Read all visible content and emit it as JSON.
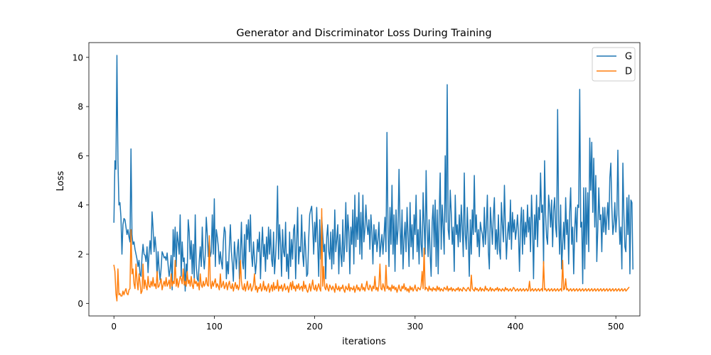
{
  "chart_data": {
    "type": "line",
    "title": "Generator and Discriminator Loss During Training",
    "xlabel": "iterations",
    "ylabel": "Loss",
    "xlim": [
      -24.95,
      523.95
    ],
    "ylim": [
      -0.51,
      10.6
    ],
    "grid": false,
    "legend_position": "top-right",
    "x_ticks": [
      0,
      100,
      200,
      300,
      400,
      500
    ],
    "y_ticks": [
      0,
      2,
      4,
      6,
      8,
      10
    ],
    "x_tick_labels": [
      "0",
      "100",
      "200",
      "300",
      "400",
      "500"
    ],
    "y_tick_labels": [
      "0",
      "2",
      "4",
      "6",
      "8",
      "10"
    ],
    "series": [
      {
        "name": "G",
        "color": "#1f77b4",
        "x_start": 0,
        "x_step": 1,
        "values": [
          3.3,
          5.8,
          5.45,
          10.08,
          5.8,
          4.0,
          4.1,
          3.5,
          2.0,
          3.2,
          3.45,
          3.4,
          3.1,
          2.8,
          3.0,
          2.7,
          2.5,
          6.28,
          2.8,
          2.4,
          2.5,
          2.2,
          2.0,
          1.8,
          1.5,
          1.75,
          1.2,
          1.1,
          1.9,
          2.4,
          2.0,
          1.95,
          1.7,
          2.3,
          1.25,
          2.05,
          2.55,
          2.0,
          3.72,
          3.05,
          2.1,
          2.7,
          2.2,
          1.05,
          2.1,
          1.4,
          0.95,
          1.4,
          2.1,
          2.0,
          1.85,
          1.9,
          1.75,
          2.05,
          1.55,
          1.1,
          1.4,
          1.95,
          0.55,
          3.0,
          1.9,
          3.1,
          1.5,
          2.9,
          2.5,
          2.0,
          3.6,
          1.1,
          2.5,
          1.7,
          1.85,
          0.5,
          1.6,
          1.2,
          3.4,
          2.9,
          1.8,
          2.55,
          1.2,
          2.4,
          1.0,
          3.6,
          1.55,
          1.0,
          0.9,
          1.7,
          2.3,
          1.5,
          3.1,
          1.9,
          1.4,
          2.0,
          3.5,
          2.8,
          1.9,
          2.6,
          1.9,
          2.1,
          3.6,
          2.0,
          4.25,
          1.5,
          3.0,
          2.7,
          2.3,
          1.6,
          2.1,
          1.7,
          1.4,
          2.5,
          3.1,
          2.9,
          1.0,
          1.7,
          1.2,
          2.3,
          3.2,
          2.1,
          1.6,
          0.9,
          2.5,
          1.9,
          1.4,
          2.2,
          2.6,
          1.0,
          2.0,
          3.3,
          1.7,
          1.4,
          2.8,
          1.0,
          3.2,
          2.6,
          3.4,
          2.1,
          3.6,
          2.0,
          1.5,
          2.5,
          1.8,
          1.2,
          1.7,
          2.6,
          2.1,
          2.9,
          1.0,
          2.3,
          3.1,
          1.9,
          2.4,
          1.3,
          2.7,
          1.8,
          3.1,
          2.0,
          3.0,
          1.8,
          1.5,
          2.9,
          1.2,
          1.9,
          2.8,
          4.77,
          1.8,
          3.2,
          2.4,
          1.1,
          3.0,
          2.1,
          1.9,
          3.3,
          1.3,
          2.0,
          1.0,
          2.9,
          1.5,
          2.6,
          1.8,
          3.0,
          3.2,
          1.0,
          2.4,
          3.9,
          1.6,
          2.3,
          2.1,
          3.6,
          2.0,
          1.5,
          2.9,
          2.2,
          1.1,
          1.2,
          2.6,
          3.6,
          3.8,
          3.95,
          3.1,
          2.0,
          3.3,
          2.5,
          3.9,
          2.4,
          1.1,
          3.4,
          1.8,
          3.5,
          2.8,
          2.1,
          2.4,
          1.0,
          2.7,
          3.2,
          2.1,
          1.8,
          2.9,
          1.4,
          3.0,
          1.6,
          3.8,
          2.1,
          2.6,
          3.2,
          1.2,
          2.8,
          2.0,
          1.5,
          3.4,
          1.7,
          2.4,
          4.1,
          2.1,
          3.6,
          2.9,
          1.2,
          3.1,
          2.4,
          3.8,
          1.6,
          4.4,
          2.3,
          3.5,
          2.6,
          4.5,
          2.0,
          3.7,
          1.8,
          4.4,
          2.5,
          3.0,
          4.0,
          3.2,
          2.8,
          3.4,
          2.2,
          3.6,
          2.9,
          1.6,
          3.2,
          2.4,
          3.0,
          2.1,
          2.6,
          3.3,
          1.9,
          2.4,
          2.8,
          2.0,
          2.7,
          3.5,
          2.1,
          6.95,
          3.1,
          1.5,
          3.9,
          2.4,
          4.8,
          2.0,
          3.6,
          1.3,
          3.8,
          2.4,
          3.0,
          5.45,
          3.1,
          2.0,
          3.8,
          1.4,
          2.6,
          3.3,
          2.1,
          3.9,
          2.7,
          1.5,
          4.1,
          2.3,
          3.2,
          1.8,
          3.6,
          2.8,
          4.4,
          2.1,
          3.0,
          1.6,
          3.8,
          2.4,
          1.9,
          4.5,
          3.2,
          2.0,
          5.4,
          3.0,
          1.9,
          3.4,
          2.0,
          1.1,
          3.3,
          4.0,
          2.3,
          4.2,
          1.5,
          3.8,
          1.2,
          3.6,
          5.3,
          2.2,
          4.0,
          3.1,
          2.0,
          6.0,
          3.3,
          8.89,
          3.0,
          2.6,
          4.6,
          3.7,
          2.4,
          3.1,
          1.3,
          4.4,
          2.8,
          3.2,
          2.3,
          3.6,
          2.5,
          4.0,
          3.1,
          1.9,
          5.3,
          2.8,
          2.2,
          3.9,
          2.6,
          1.1,
          3.4,
          2.0,
          3.8,
          2.8,
          5.2,
          2.9,
          3.6,
          2.3,
          3.0,
          1.9,
          3.3,
          3.0,
          2.8,
          2.3,
          3.9,
          2.4,
          3.1,
          4.4,
          2.1,
          1.4,
          3.9,
          3.2,
          2.4,
          3.6,
          4.3,
          2.2,
          3.0,
          2.0,
          3.6,
          2.2,
          1.8,
          4.1,
          3.2,
          2.5,
          4.8,
          3.1,
          1.8,
          2.8,
          3.3,
          2.6,
          4.2,
          2.2,
          3.7,
          2.9,
          3.4,
          2.6,
          3.0,
          3.6,
          2.8,
          1.3,
          3.2,
          3.9,
          2.0,
          3.8,
          2.4,
          3.3,
          2.7,
          4.0,
          2.9,
          3.5,
          2.1,
          4.4,
          3.2,
          1.0,
          3.6,
          2.6,
          4.4,
          2.3,
          3.9,
          3.4,
          5.3,
          3.7,
          4.0,
          1.6,
          5.8,
          3.6,
          2.7,
          2.4,
          4.4,
          3.9,
          3.1,
          4.2,
          2.3,
          3.8,
          4.3,
          3.1,
          2.7,
          7.88,
          3.4,
          2.0,
          4.0,
          1.4,
          2.4,
          3.3,
          2.2,
          4.3,
          2.8,
          3.4,
          1.6,
          3.7,
          4.7,
          2.4,
          3.1,
          1.2,
          3.0,
          3.9,
          2.5,
          4.0,
          3.9,
          8.7,
          3.1,
          3.3,
          0.8,
          4.7,
          1.4,
          4.7,
          2.4,
          4.5,
          2.1,
          6.72,
          4.6,
          6.55,
          3.7,
          5.9,
          3.1,
          5.2,
          1.7,
          3.0,
          4.7,
          3.4,
          3.6,
          2.1,
          3.9,
          2.9,
          3.9,
          2.8,
          3.5,
          4.1,
          3.0,
          5.1,
          5.7,
          3.9,
          2.8,
          3.2,
          4.1,
          2.9,
          3.6,
          6.23,
          3.6,
          2.4,
          3.1,
          1.4,
          5.7,
          3.6,
          2.3,
          2.1,
          4.3,
          2.8,
          4.4,
          1.2,
          4.2,
          4.1,
          1.4
        ]
      },
      {
        "name": "D",
        "color": "#ff7f0e",
        "x_start": 0,
        "x_step": 1,
        "values": [
          1.55,
          1.3,
          0.4,
          0.1,
          1.4,
          0.35,
          0.4,
          0.3,
          0.3,
          0.5,
          0.35,
          0.5,
          0.6,
          0.4,
          0.35,
          0.55,
          0.6,
          3.0,
          1.2,
          1.4,
          0.8,
          0.6,
          1.6,
          0.9,
          0.55,
          1.2,
          0.85,
          0.4,
          0.5,
          1.6,
          0.6,
          0.95,
          0.7,
          0.55,
          1.1,
          0.7,
          0.65,
          0.9,
          0.7,
          1.05,
          0.7,
          0.8,
          0.6,
          1.3,
          0.65,
          0.7,
          0.85,
          1.0,
          0.55,
          0.75,
          0.9,
          0.7,
          1.05,
          0.7,
          0.8,
          0.95,
          0.6,
          1.2,
          0.7,
          0.9,
          0.8,
          1.75,
          0.7,
          1.0,
          0.65,
          0.85,
          1.1,
          1.0,
          0.8,
          1.4,
          0.75,
          0.9,
          0.7,
          1.3,
          0.8,
          0.95,
          0.7,
          1.1,
          0.75,
          0.6,
          1.0,
          0.8,
          0.9,
          0.7,
          0.85,
          0.55,
          1.2,
          0.75,
          0.65,
          0.9,
          0.7,
          0.8,
          1.05,
          0.75,
          0.7,
          2.75,
          0.8,
          0.6,
          0.9,
          0.7,
          0.85,
          1.0,
          0.65,
          0.8,
          0.7,
          0.55,
          1.2,
          0.65,
          0.75,
          0.9,
          0.6,
          0.7,
          0.85,
          0.55,
          0.75,
          0.9,
          0.65,
          0.6,
          0.8,
          0.5,
          0.7,
          0.85,
          0.6,
          0.75,
          0.55,
          0.7,
          1.75,
          0.9,
          0.6,
          0.55,
          0.8,
          0.5,
          0.7,
          0.9,
          0.55,
          0.65,
          0.8,
          0.5,
          0.6,
          0.75,
          1.2,
          0.55,
          0.7,
          0.45,
          0.65,
          0.6,
          0.8,
          0.5,
          0.6,
          0.9,
          0.55,
          0.7,
          0.5,
          0.65,
          0.8,
          0.45,
          0.6,
          0.75,
          0.5,
          0.85,
          0.55,
          0.7,
          0.6,
          0.95,
          0.5,
          0.7,
          0.6,
          0.75,
          0.5,
          0.65,
          0.8,
          0.55,
          0.6,
          0.7,
          0.45,
          0.65,
          0.85,
          0.55,
          0.9,
          0.6,
          0.7,
          0.5,
          0.75,
          0.6,
          0.8,
          0.55,
          0.65,
          0.7,
          0.5,
          0.9,
          0.6,
          0.75,
          0.55,
          0.45,
          0.6,
          0.8,
          0.5,
          0.7,
          0.95,
          0.6,
          0.55,
          0.75,
          0.5,
          0.65,
          0.8,
          0.6,
          0.5,
          3.85,
          0.7,
          1.5,
          0.65,
          0.55,
          0.8,
          0.6,
          0.5,
          0.75,
          0.65,
          0.55,
          0.7,
          0.6,
          0.45,
          0.8,
          0.6,
          0.55,
          0.7,
          0.5,
          0.65,
          0.6,
          0.75,
          0.55,
          0.45,
          0.7,
          0.6,
          0.55,
          0.8,
          0.5,
          0.65,
          0.6,
          0.55,
          0.7,
          0.45,
          0.6,
          0.75,
          0.55,
          0.65,
          0.5,
          0.6,
          0.8,
          0.55,
          0.65,
          0.5,
          0.7,
          0.9,
          0.6,
          0.55,
          0.75,
          0.65,
          0.5,
          0.7,
          0.6,
          1.1,
          0.55,
          0.65,
          0.5,
          0.75,
          1.6,
          0.6,
          0.55,
          0.8,
          0.65,
          0.5,
          1.55,
          0.6,
          0.7,
          0.55,
          0.65,
          0.5,
          0.75,
          0.6,
          0.7,
          0.55,
          0.65,
          0.45,
          0.6,
          0.75,
          0.55,
          0.5,
          0.7,
          0.6,
          0.8,
          0.55,
          0.65,
          0.5,
          0.6,
          0.45,
          0.7,
          0.55,
          0.65,
          0.5,
          0.6,
          0.75,
          0.55,
          0.5,
          0.65,
          0.6,
          0.55,
          0.7,
          1.3,
          0.6,
          2.25,
          0.55,
          0.65,
          0.6,
          0.5,
          0.7,
          0.55,
          0.6,
          0.5,
          0.65,
          0.55,
          0.6,
          0.5,
          0.7,
          0.55,
          0.65,
          0.5,
          0.6,
          0.55,
          0.5,
          0.65,
          0.6,
          0.55,
          0.7,
          0.5,
          0.6,
          0.55,
          0.65,
          0.5,
          0.6,
          0.55,
          0.5,
          0.6,
          0.55,
          0.65,
          0.5,
          0.6,
          0.55,
          0.5,
          0.65,
          0.6,
          0.55,
          0.5,
          0.6,
          0.65,
          0.55,
          0.5,
          1.15,
          0.6,
          0.55,
          0.5,
          0.65,
          0.55,
          0.6,
          0.5,
          0.55,
          0.65,
          0.5,
          0.6,
          0.55,
          0.5,
          0.7,
          0.55,
          0.6,
          0.5,
          0.55,
          0.65,
          0.5,
          0.6,
          0.55,
          0.5,
          0.6,
          0.55,
          0.65,
          0.5,
          0.6,
          0.55,
          0.5,
          0.6,
          0.55,
          0.5,
          0.65,
          0.55,
          0.6,
          0.5,
          0.55,
          0.6,
          0.5,
          0.55,
          0.65,
          0.6,
          0.5,
          0.55,
          0.6,
          0.5,
          0.55,
          0.6,
          0.5,
          0.55,
          0.6,
          0.5,
          0.55,
          0.6,
          0.5,
          0.55,
          0.9,
          0.5,
          0.55,
          0.6,
          0.5,
          0.55,
          0.6,
          0.5,
          0.55,
          0.6,
          0.5,
          0.55,
          0.6,
          0.5,
          1.7,
          0.55,
          0.6,
          0.5,
          0.55,
          0.6,
          0.5,
          0.55,
          0.6,
          0.5,
          0.55,
          0.6,
          0.5,
          0.55,
          0.6,
          0.5,
          0.55,
          0.6,
          0.5,
          1.75,
          0.55,
          0.6,
          1.0,
          0.55,
          0.6,
          0.5,
          0.55,
          0.6,
          0.5,
          0.55,
          0.6,
          0.5,
          0.55,
          0.6,
          0.5,
          0.55,
          0.6,
          0.5,
          0.55,
          0.6,
          0.5,
          0.55,
          0.6,
          0.5,
          0.55,
          0.6,
          0.5,
          0.55,
          0.6,
          0.5,
          0.55,
          0.6,
          0.5,
          0.55,
          0.6,
          0.5,
          0.55,
          0.6,
          0.5,
          0.55,
          0.6,
          0.5,
          0.55,
          0.6,
          0.5,
          0.55,
          0.6,
          0.5,
          0.55,
          0.6,
          0.5,
          0.55,
          0.6,
          0.5,
          0.55,
          0.6,
          0.5,
          0.55,
          0.6,
          0.5,
          0.55,
          0.6,
          0.5,
          0.55,
          0.6,
          0.65
        ]
      }
    ]
  }
}
